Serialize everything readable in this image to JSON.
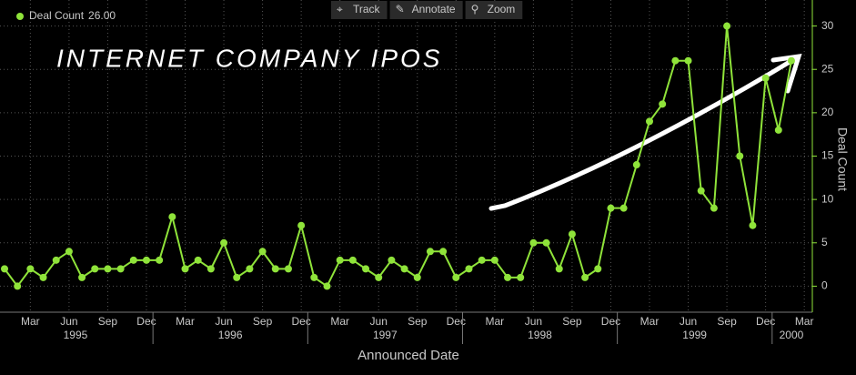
{
  "chart_data": {
    "type": "line",
    "annotation": "INTERNET COMPANY IPOS",
    "toolbar": [
      "Track",
      "Annotate",
      "Zoom"
    ],
    "legend_value_label": "26.00",
    "x_label": "Announced Date",
    "y_label": "Deal Count",
    "x": [
      "1995-01",
      "1995-02",
      "1995-03",
      "1995-04",
      "1995-05",
      "1995-06",
      "1995-07",
      "1995-08",
      "1995-09",
      "1995-10",
      "1995-11",
      "1995-12",
      "1996-01",
      "1996-02",
      "1996-03",
      "1996-04",
      "1996-05",
      "1996-06",
      "1996-07",
      "1996-08",
      "1996-09",
      "1996-10",
      "1996-11",
      "1996-12",
      "1997-01",
      "1997-02",
      "1997-03",
      "1997-04",
      "1997-05",
      "1997-06",
      "1997-07",
      "1997-08",
      "1997-09",
      "1997-10",
      "1997-11",
      "1997-12",
      "1998-01",
      "1998-02",
      "1998-03",
      "1998-04",
      "1998-05",
      "1998-06",
      "1998-07",
      "1998-08",
      "1998-09",
      "1998-10",
      "1998-11",
      "1998-12",
      "1999-01",
      "1999-02",
      "1999-03",
      "1999-04",
      "1999-05",
      "1999-06",
      "1999-07",
      "1999-08",
      "1999-09",
      "1999-10",
      "1999-11",
      "1999-12",
      "2000-01",
      "2000-02"
    ],
    "series": [
      {
        "name": "Deal Count",
        "color": "#8fe33a",
        "values": [
          2,
          0,
          2,
          1,
          3,
          4,
          1,
          2,
          2,
          2,
          3,
          3,
          3,
          8,
          2,
          3,
          2,
          5,
          1,
          2,
          4,
          2,
          2,
          7,
          1,
          0,
          3,
          3,
          2,
          1,
          3,
          2,
          1,
          4,
          4,
          1,
          2,
          3,
          3,
          1,
          1,
          5,
          5,
          2,
          6,
          1,
          2,
          9,
          9,
          14,
          19,
          21,
          26,
          26,
          11,
          9,
          30,
          15,
          7,
          24,
          18,
          26
        ]
      }
    ],
    "xticks": [
      {
        "value": "1995-03",
        "label": "Mar"
      },
      {
        "value": "1995-06",
        "label": "Jun"
      },
      {
        "value": "1995-09",
        "label": "Sep"
      },
      {
        "value": "1995-12",
        "label": "Dec"
      },
      {
        "value": "1996-03",
        "label": "Mar"
      },
      {
        "value": "1996-06",
        "label": "Jun"
      },
      {
        "value": "1996-09",
        "label": "Sep"
      },
      {
        "value": "1996-12",
        "label": "Dec"
      },
      {
        "value": "1997-03",
        "label": "Mar"
      },
      {
        "value": "1997-06",
        "label": "Jun"
      },
      {
        "value": "1997-09",
        "label": "Sep"
      },
      {
        "value": "1997-12",
        "label": "Dec"
      },
      {
        "value": "1998-03",
        "label": "Mar"
      },
      {
        "value": "1998-06",
        "label": "Jun"
      },
      {
        "value": "1998-09",
        "label": "Sep"
      },
      {
        "value": "1998-12",
        "label": "Dec"
      },
      {
        "value": "1999-03",
        "label": "Mar"
      },
      {
        "value": "1999-06",
        "label": "Jun"
      },
      {
        "value": "1999-09",
        "label": "Sep"
      },
      {
        "value": "1999-12",
        "label": "Dec"
      },
      {
        "value": "2000-03",
        "label": "Mar"
      }
    ],
    "years": [
      "1995",
      "1996",
      "1997",
      "1998",
      "1999",
      "2000"
    ],
    "ylim": [
      -3,
      33
    ],
    "yticks": [
      0,
      5,
      10,
      15,
      20,
      25,
      30
    ],
    "grid": true
  }
}
